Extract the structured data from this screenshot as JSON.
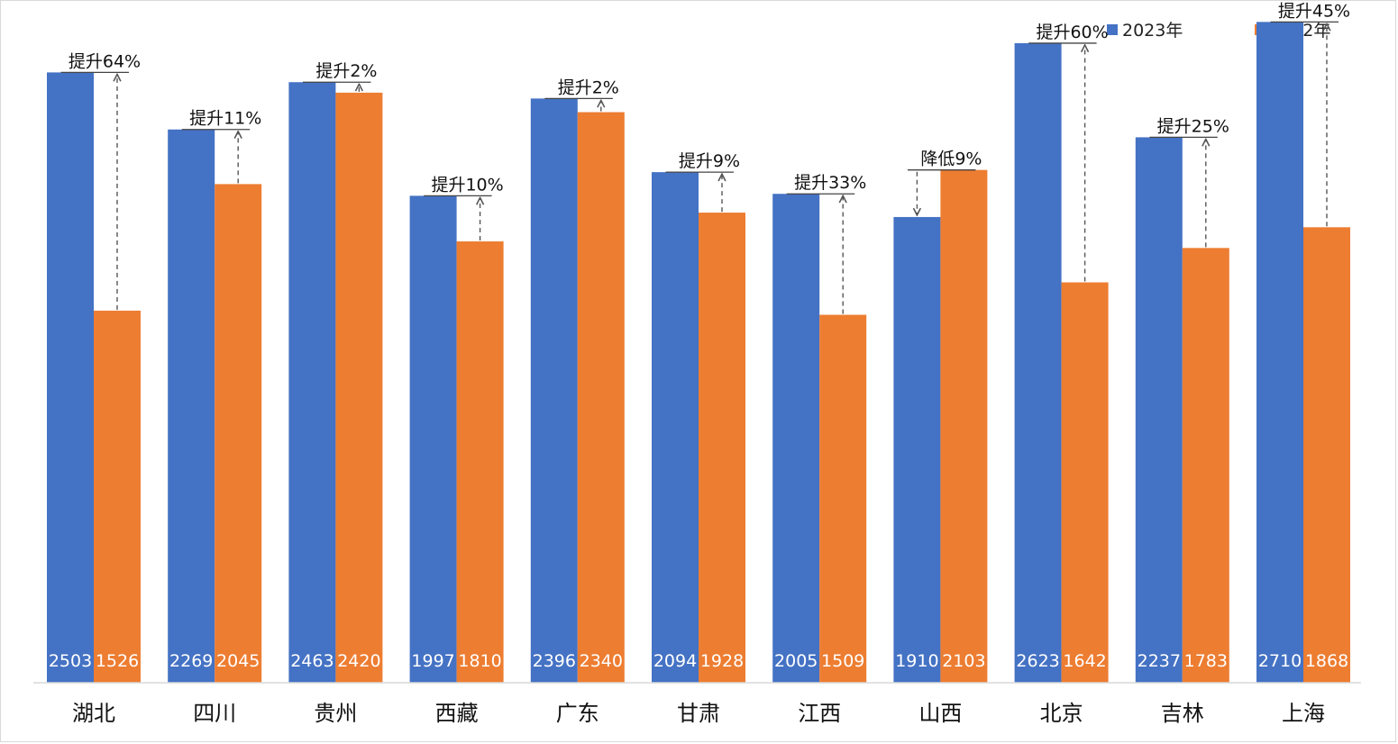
{
  "chart_data": {
    "type": "bar",
    "title": "",
    "xlabel": "",
    "ylabel": "",
    "ylim": [
      0,
      2800
    ],
    "grid": false,
    "legend": "top-right",
    "categories": [
      "湖北",
      "四川",
      "贵州",
      "西藏",
      "广东",
      "甘肃",
      "江西",
      "山西",
      "北京",
      "吉林",
      "上海"
    ],
    "series": [
      {
        "name": "2023年",
        "color": "#4472C4",
        "values": [
          2503,
          2269,
          2463,
          1997,
          2396,
          2094,
          2005,
          1910,
          2623,
          2237,
          2710
        ]
      },
      {
        "name": "2022年",
        "color": "#ED7D31",
        "values": [
          1526,
          2045,
          2420,
          1810,
          2340,
          1928,
          1509,
          2103,
          1642,
          1783,
          1868
        ]
      }
    ],
    "annotations": [
      "提升64%",
      "提升11%",
      "提升2%",
      "提升10%",
      "提升2%",
      "提升9%",
      "提升33%",
      "降低9%",
      "提升60%",
      "提升25%",
      "提升45%"
    ]
  }
}
